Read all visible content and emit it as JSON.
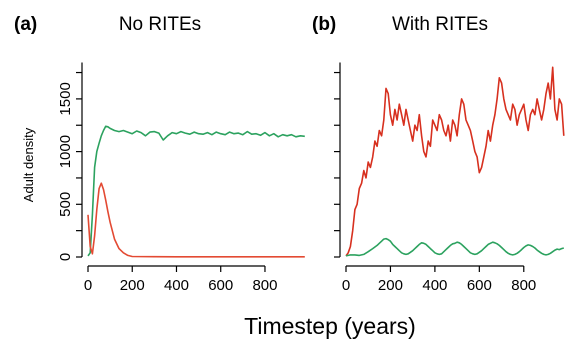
{
  "chart_data": [
    {
      "type": "line",
      "panel_label": "(a)",
      "title": "No RITEs",
      "ylabel": "Adult density",
      "xlim": [
        0,
        990
      ],
      "ylim": [
        0,
        1850
      ],
      "x_ticks": [
        0,
        200,
        400,
        600,
        800
      ],
      "y_ticks": [
        0,
        500,
        1000,
        1500
      ],
      "series": [
        {
          "color": "#2ca25f",
          "points": [
            [
              0,
              10
            ],
            [
              10,
              40
            ],
            [
              20,
              400
            ],
            [
              30,
              850
            ],
            [
              40,
              1000
            ],
            [
              50,
              1080
            ],
            [
              60,
              1150
            ],
            [
              70,
              1200
            ],
            [
              80,
              1240
            ],
            [
              90,
              1235
            ],
            [
              100,
              1220
            ],
            [
              120,
              1200
            ],
            [
              140,
              1190
            ],
            [
              160,
              1200
            ],
            [
              180,
              1185
            ],
            [
              200,
              1170
            ],
            [
              220,
              1195
            ],
            [
              240,
              1180
            ],
            [
              260,
              1150
            ],
            [
              280,
              1185
            ],
            [
              300,
              1190
            ],
            [
              320,
              1175
            ],
            [
              340,
              1110
            ],
            [
              360,
              1150
            ],
            [
              380,
              1180
            ],
            [
              400,
              1170
            ],
            [
              420,
              1190
            ],
            [
              440,
              1175
            ],
            [
              460,
              1165
            ],
            [
              480,
              1185
            ],
            [
              500,
              1170
            ],
            [
              520,
              1165
            ],
            [
              540,
              1180
            ],
            [
              560,
              1160
            ],
            [
              580,
              1185
            ],
            [
              600,
              1170
            ],
            [
              620,
              1160
            ],
            [
              640,
              1185
            ],
            [
              660,
              1170
            ],
            [
              680,
              1175
            ],
            [
              700,
              1160
            ],
            [
              720,
              1190
            ],
            [
              740,
              1165
            ],
            [
              760,
              1170
            ],
            [
              780,
              1155
            ],
            [
              800,
              1180
            ],
            [
              820,
              1150
            ],
            [
              840,
              1170
            ],
            [
              860,
              1140
            ],
            [
              880,
              1160
            ],
            [
              900,
              1150
            ],
            [
              920,
              1160
            ],
            [
              940,
              1140
            ],
            [
              960,
              1150
            ],
            [
              980,
              1145
            ]
          ]
        },
        {
          "color": "#e34a33",
          "points": [
            [
              0,
              400
            ],
            [
              10,
              100
            ],
            [
              20,
              30
            ],
            [
              30,
              200
            ],
            [
              40,
              450
            ],
            [
              50,
              650
            ],
            [
              60,
              700
            ],
            [
              70,
              640
            ],
            [
              80,
              540
            ],
            [
              90,
              430
            ],
            [
              100,
              330
            ],
            [
              120,
              170
            ],
            [
              140,
              80
            ],
            [
              160,
              40
            ],
            [
              180,
              15
            ],
            [
              200,
              5
            ],
            [
              300,
              3
            ],
            [
              400,
              2
            ],
            [
              600,
              2
            ],
            [
              800,
              2
            ],
            [
              980,
              2
            ]
          ]
        }
      ]
    },
    {
      "type": "line",
      "panel_label": "(b)",
      "title": "With RITEs",
      "xlim": [
        0,
        990
      ],
      "ylim": [
        0,
        1850
      ],
      "x_ticks": [
        0,
        200,
        400,
        600,
        800
      ],
      "y_ticks": [
        0,
        500,
        1000,
        1500
      ],
      "series": [
        {
          "color": "#d7301f",
          "points": [
            [
              0,
              10
            ],
            [
              10,
              40
            ],
            [
              20,
              100
            ],
            [
              30,
              250
            ],
            [
              40,
              450
            ],
            [
              50,
              500
            ],
            [
              60,
              650
            ],
            [
              70,
              700
            ],
            [
              80,
              820
            ],
            [
              90,
              750
            ],
            [
              100,
              900
            ],
            [
              110,
              850
            ],
            [
              120,
              950
            ],
            [
              130,
              1100
            ],
            [
              140,
              1050
            ],
            [
              150,
              1200
            ],
            [
              160,
              1150
            ],
            [
              170,
              1300
            ],
            [
              180,
              1600
            ],
            [
              190,
              1550
            ],
            [
              200,
              1350
            ],
            [
              210,
              1250
            ],
            [
              220,
              1400
            ],
            [
              230,
              1300
            ],
            [
              240,
              1450
            ],
            [
              250,
              1350
            ],
            [
              260,
              1250
            ],
            [
              270,
              1400
            ],
            [
              280,
              1300
            ],
            [
              290,
              1200
            ],
            [
              300,
              1100
            ],
            [
              310,
              1250
            ],
            [
              320,
              1200
            ],
            [
              330,
              1350
            ],
            [
              340,
              1150
            ],
            [
              350,
              1000
            ],
            [
              360,
              950
            ],
            [
              370,
              1100
            ],
            [
              380,
              1050
            ],
            [
              390,
              1300
            ],
            [
              400,
              1250
            ],
            [
              410,
              1200
            ],
            [
              420,
              1350
            ],
            [
              430,
              1300
            ],
            [
              440,
              1200
            ],
            [
              450,
              1150
            ],
            [
              460,
              1250
            ],
            [
              470,
              1100
            ],
            [
              480,
              1300
            ],
            [
              490,
              1250
            ],
            [
              500,
              1150
            ],
            [
              510,
              1350
            ],
            [
              520,
              1500
            ],
            [
              530,
              1450
            ],
            [
              540,
              1300
            ],
            [
              550,
              1250
            ],
            [
              560,
              1200
            ],
            [
              570,
              1100
            ],
            [
              580,
              1000
            ],
            [
              590,
              950
            ],
            [
              600,
              800
            ],
            [
              610,
              850
            ],
            [
              620,
              950
            ],
            [
              630,
              1050
            ],
            [
              640,
              1200
            ],
            [
              650,
              1100
            ],
            [
              660,
              1250
            ],
            [
              670,
              1350
            ],
            [
              680,
              1500
            ],
            [
              690,
              1700
            ],
            [
              700,
              1650
            ],
            [
              710,
              1500
            ],
            [
              720,
              1400
            ],
            [
              730,
              1350
            ],
            [
              740,
              1300
            ],
            [
              750,
              1450
            ],
            [
              760,
              1400
            ],
            [
              770,
              1250
            ],
            [
              780,
              1350
            ],
            [
              790,
              1400
            ],
            [
              800,
              1450
            ],
            [
              810,
              1300
            ],
            [
              820,
              1200
            ],
            [
              830,
              1350
            ],
            [
              840,
              1400
            ],
            [
              850,
              1350
            ],
            [
              860,
              1500
            ],
            [
              870,
              1400
            ],
            [
              880,
              1300
            ],
            [
              890,
              1400
            ],
            [
              900,
              1550
            ],
            [
              910,
              1650
            ],
            [
              920,
              1500
            ],
            [
              930,
              1800
            ],
            [
              940,
              1400
            ],
            [
              950,
              1300
            ],
            [
              960,
              1500
            ],
            [
              970,
              1450
            ],
            [
              980,
              1150
            ]
          ]
        },
        {
          "color": "#2ca25f",
          "points": [
            [
              0,
              10
            ],
            [
              20,
              20
            ],
            [
              40,
              20
            ],
            [
              60,
              15
            ],
            [
              80,
              25
            ],
            [
              100,
              50
            ],
            [
              120,
              80
            ],
            [
              140,
              110
            ],
            [
              150,
              130
            ],
            [
              160,
              150
            ],
            [
              170,
              170
            ],
            [
              180,
              175
            ],
            [
              190,
              165
            ],
            [
              200,
              150
            ],
            [
              210,
              120
            ],
            [
              220,
              100
            ],
            [
              230,
              80
            ],
            [
              240,
              60
            ],
            [
              250,
              40
            ],
            [
              260,
              30
            ],
            [
              270,
              25
            ],
            [
              280,
              30
            ],
            [
              290,
              45
            ],
            [
              300,
              60
            ],
            [
              310,
              80
            ],
            [
              320,
              100
            ],
            [
              330,
              120
            ],
            [
              340,
              135
            ],
            [
              350,
              130
            ],
            [
              360,
              120
            ],
            [
              370,
              100
            ],
            [
              380,
              80
            ],
            [
              390,
              60
            ],
            [
              400,
              40
            ],
            [
              410,
              30
            ],
            [
              420,
              25
            ],
            [
              430,
              30
            ],
            [
              440,
              50
            ],
            [
              450,
              70
            ],
            [
              460,
              90
            ],
            [
              470,
              110
            ],
            [
              480,
              125
            ],
            [
              490,
              130
            ],
            [
              500,
              140
            ],
            [
              510,
              135
            ],
            [
              520,
              120
            ],
            [
              530,
              100
            ],
            [
              540,
              80
            ],
            [
              550,
              60
            ],
            [
              560,
              40
            ],
            [
              570,
              30
            ],
            [
              580,
              25
            ],
            [
              590,
              30
            ],
            [
              600,
              45
            ],
            [
              610,
              60
            ],
            [
              620,
              80
            ],
            [
              630,
              100
            ],
            [
              640,
              120
            ],
            [
              650,
              130
            ],
            [
              660,
              140
            ],
            [
              670,
              135
            ],
            [
              680,
              125
            ],
            [
              690,
              110
            ],
            [
              700,
              90
            ],
            [
              710,
              70
            ],
            [
              720,
              50
            ],
            [
              730,
              35
            ],
            [
              740,
              25
            ],
            [
              750,
              20
            ],
            [
              760,
              25
            ],
            [
              770,
              35
            ],
            [
              780,
              50
            ],
            [
              790,
              70
            ],
            [
              800,
              90
            ],
            [
              810,
              105
            ],
            [
              820,
              115
            ],
            [
              830,
              110
            ],
            [
              840,
              100
            ],
            [
              850,
              85
            ],
            [
              860,
              65
            ],
            [
              870,
              50
            ],
            [
              880,
              35
            ],
            [
              890,
              25
            ],
            [
              900,
              20
            ],
            [
              910,
              25
            ],
            [
              920,
              35
            ],
            [
              930,
              50
            ],
            [
              940,
              65
            ],
            [
              950,
              75
            ],
            [
              960,
              70
            ],
            [
              970,
              80
            ],
            [
              980,
              85
            ]
          ]
        }
      ]
    }
  ],
  "shared_xlabel": "Timestep (years)"
}
